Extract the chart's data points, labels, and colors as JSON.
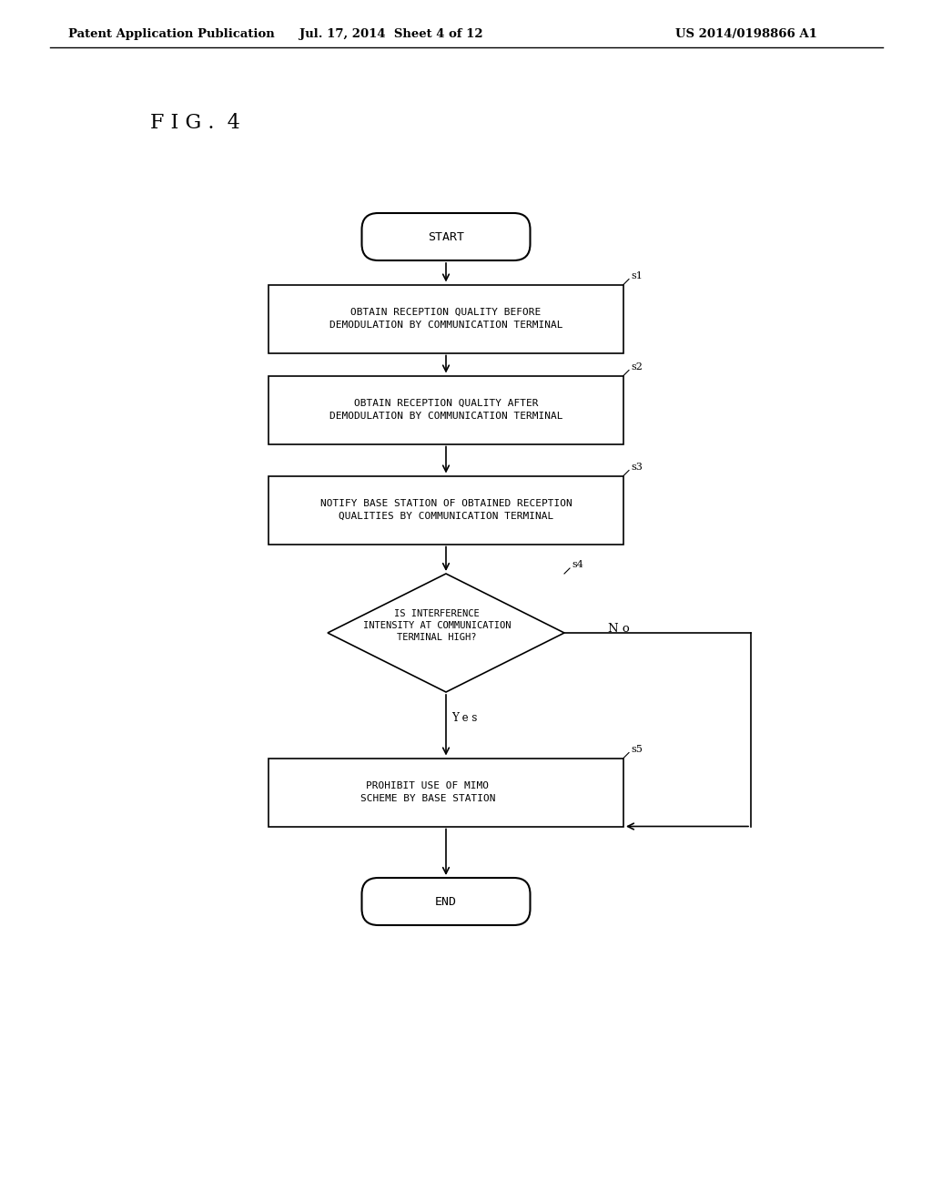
{
  "bg_color": "#ffffff",
  "text_color": "#000000",
  "header_left": "Patent Application Publication",
  "header_mid": "Jul. 17, 2014  Sheet 4 of 12",
  "header_right": "US 2014/0198866 A1",
  "fig_label": "F I G .  4",
  "font_size_header": 9.5,
  "font_size_fig": 16,
  "font_size_node": 8,
  "font_size_label": 8
}
